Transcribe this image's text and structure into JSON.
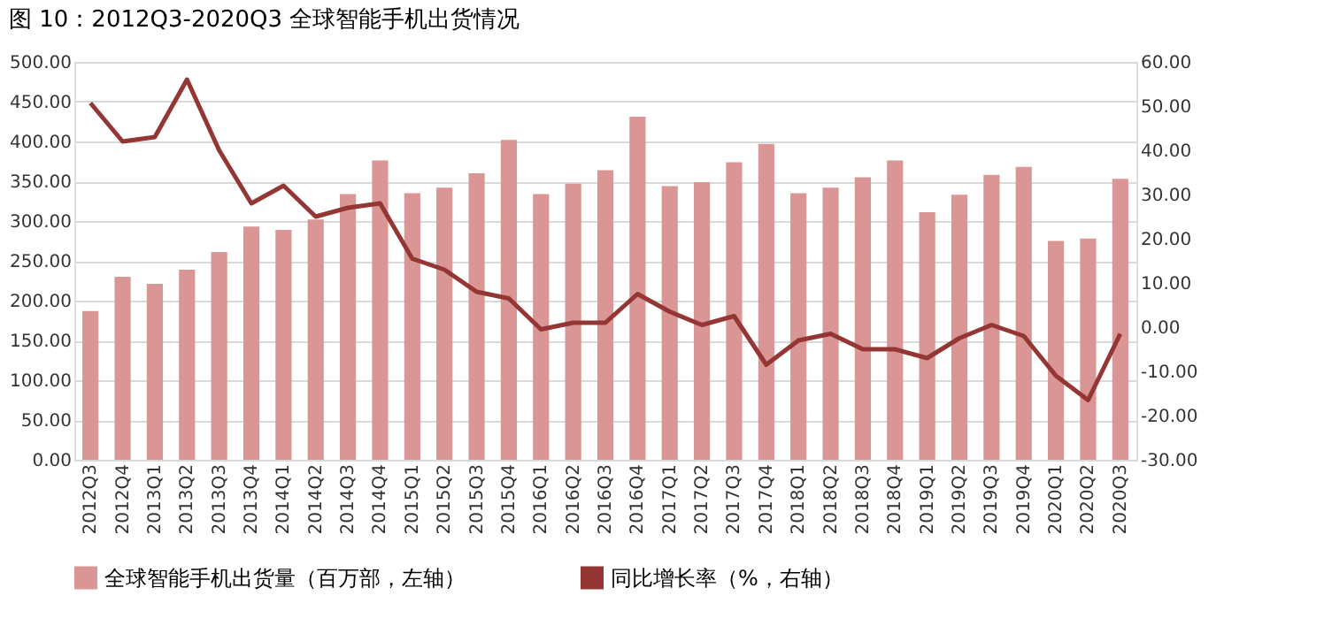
{
  "chart_data": {
    "type": "bar",
    "title": "图 10：2012Q3-2020Q3 全球智能手机出货情况",
    "categories": [
      "2012Q3",
      "2012Q4",
      "2013Q1",
      "2013Q2",
      "2013Q3",
      "2013Q4",
      "2014Q1",
      "2014Q2",
      "2014Q3",
      "2014Q4",
      "2015Q1",
      "2015Q2",
      "2015Q3",
      "2015Q4",
      "2016Q1",
      "2016Q2",
      "2016Q3",
      "2016Q4",
      "2017Q1",
      "2017Q2",
      "2017Q3",
      "2017Q4",
      "2018Q1",
      "2018Q2",
      "2018Q3",
      "2018Q4",
      "2019Q1",
      "2019Q2",
      "2019Q3",
      "2019Q4",
      "2020Q1",
      "2020Q2",
      "2020Q3"
    ],
    "series": [
      {
        "name": "全球智能手机出货量（百万部，左轴）",
        "color": "#d99694",
        "values": [
          187,
          230,
          221,
          239,
          261,
          293,
          289,
          302,
          334,
          376,
          335,
          342,
          360,
          402,
          334,
          347,
          364,
          431,
          344,
          349,
          374,
          397,
          335,
          342,
          355,
          376,
          311,
          333,
          358,
          368,
          275,
          278,
          353
        ]
      },
      {
        "name": "同比增长率（%，右轴）",
        "type": "line",
        "axis": "y2",
        "color": "#943634",
        "values": [
          50.7,
          42,
          43,
          56,
          40,
          28,
          32,
          25,
          27,
          28,
          15.5,
          13,
          8,
          6.5,
          -0.5,
          1,
          1,
          7.5,
          3.5,
          0.5,
          2.5,
          -8.5,
          -3,
          -1.5,
          -5,
          -5,
          -7,
          -2.5,
          0.5,
          -2,
          -11,
          -16.5,
          -1.5
        ]
      }
    ],
    "ylim": [
      0,
      500
    ],
    "yticks": [
      {
        "value": 0,
        "label": "0.00"
      },
      {
        "value": 50,
        "label": "50.00"
      },
      {
        "value": 100,
        "label": "100.00"
      },
      {
        "value": 150,
        "label": "150.00"
      },
      {
        "value": 200,
        "label": "200.00"
      },
      {
        "value": 250,
        "label": "250.00"
      },
      {
        "value": 300,
        "label": "300.00"
      },
      {
        "value": 350,
        "label": "350.00"
      },
      {
        "value": 400,
        "label": "400.00"
      },
      {
        "value": 450,
        "label": "450.00"
      },
      {
        "value": 500,
        "label": "500.00"
      }
    ],
    "y2lim": [
      -30,
      60
    ],
    "y2ticks": [
      {
        "value": -30,
        "label": "-30.00"
      },
      {
        "value": -20,
        "label": "-20.00"
      },
      {
        "value": -10,
        "label": "-10.00"
      },
      {
        "value": 0,
        "label": "0.00"
      },
      {
        "value": 10,
        "label": "10.00"
      },
      {
        "value": 20,
        "label": "20.00"
      },
      {
        "value": 30,
        "label": "30.00"
      },
      {
        "value": 40,
        "label": "40.00"
      },
      {
        "value": 50,
        "label": "50.00"
      },
      {
        "value": 60,
        "label": "60.00"
      }
    ],
    "grid": "y",
    "legend": "bottom",
    "line_style": "solid"
  }
}
